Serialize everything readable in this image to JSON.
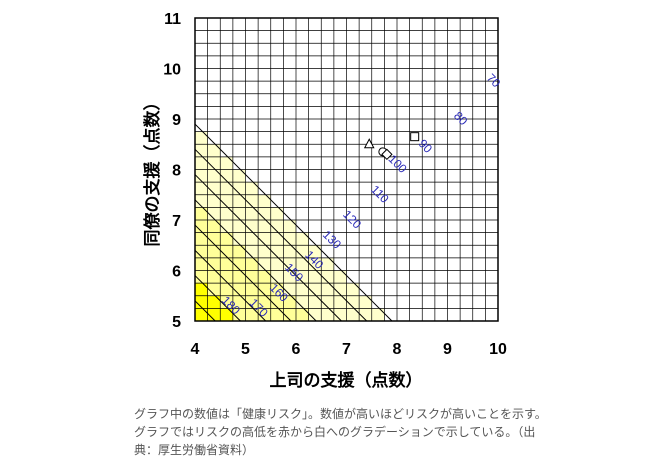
{
  "caption": "グラフ中の数値は「健康リスク」。数値が高いほどリスクが高いことを示す。グラフではリスクの高低を赤から白へのグラデーションで示している。（出典：厚生労働省資料）",
  "chart_data": {
    "type": "heatmap",
    "title": "",
    "xlabel": "上司の支援（点数）",
    "ylabel": "同僚の支援（点数）",
    "xlim": [
      4,
      10
    ],
    "ylim": [
      5,
      11
    ],
    "x_ticks": [
      "4",
      "5",
      "6",
      "7",
      "8",
      "9",
      "10"
    ],
    "y_ticks": [
      "5",
      "6",
      "7",
      "8",
      "9",
      "10",
      "11"
    ],
    "grid": true,
    "contour_lines": [
      {
        "label": "70",
        "x": 9.9,
        "y": 9.75
      },
      {
        "label": "80",
        "x": 9.25,
        "y": 9.0
      },
      {
        "label": "90",
        "x": 8.55,
        "y": 8.45
      },
      {
        "label": "100",
        "x": 8.0,
        "y": 8.1
      },
      {
        "label": "110",
        "x": 7.65,
        "y": 7.5
      },
      {
        "label": "120",
        "x": 7.1,
        "y": 7.0
      },
      {
        "label": "130",
        "x": 6.7,
        "y": 6.6
      },
      {
        "label": "140",
        "x": 6.35,
        "y": 6.2
      },
      {
        "label": "150",
        "x": 5.95,
        "y": 5.95
      },
      {
        "label": "160",
        "x": 5.65,
        "y": 5.55
      },
      {
        "label": "170",
        "x": 5.25,
        "y": 5.25
      },
      {
        "label": "180",
        "x": 4.7,
        "y": 5.3
      }
    ],
    "color_bands": [
      {
        "max_risk": 70,
        "color": "#ffffff"
      },
      {
        "max_risk": 100,
        "color": "#ffffcc"
      },
      {
        "max_risk": 130,
        "color": "#ffff99"
      },
      {
        "max_risk": 150,
        "color": "#ffff00"
      },
      {
        "max_risk": 160,
        "color": "#ffcc00"
      },
      {
        "max_risk": 170,
        "color": "#ff9900"
      },
      {
        "max_risk": 180,
        "color": "#ff6600"
      },
      {
        "max_risk": 999,
        "color": "#ee0000"
      }
    ],
    "markers": [
      {
        "shape": "triangle",
        "x": 7.45,
        "y": 8.5
      },
      {
        "shape": "circle",
        "x": 7.72,
        "y": 8.35
      },
      {
        "shape": "diamond",
        "x": 7.8,
        "y": 8.3
      },
      {
        "shape": "square",
        "x": 8.35,
        "y": 8.65
      }
    ]
  }
}
